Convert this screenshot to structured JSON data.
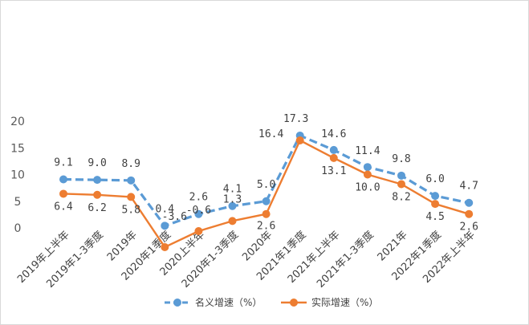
{
  "chart_data": {
    "type": "line",
    "title": "",
    "xlabel": "",
    "ylabel": "",
    "ylim": [
      0,
      20
    ],
    "yticks": [
      0,
      5,
      10,
      15,
      20
    ],
    "grid": false,
    "legend_position": "bottom",
    "categories": [
      "2019年上半年",
      "2019年1-3季度",
      "2019年",
      "2020年1季度",
      "2020上半年",
      "2020年1-3季度",
      "2020年",
      "2021年1季度",
      "2021年上半年",
      "2021年1-3季度",
      "2021年",
      "2022年1季度",
      "2022年上半年"
    ],
    "series": [
      {
        "name": "名义增速（%）",
        "style": "dashed",
        "color": "#5b9bd5",
        "values": [
          9.1,
          9.0,
          8.9,
          0.4,
          2.6,
          4.1,
          5.0,
          17.3,
          14.6,
          11.4,
          9.8,
          6.0,
          4.7
        ],
        "labels": [
          "9.1",
          "9.0",
          "8.9",
          "0.4",
          "2.6",
          "4.1",
          "5.0",
          "17.3",
          "14.6",
          "11.4",
          "9.8",
          "6.0",
          "4.7"
        ]
      },
      {
        "name": "实际增速（%）",
        "style": "solid",
        "color": "#ed7d31",
        "values": [
          6.4,
          6.2,
          5.8,
          -3.6,
          -0.6,
          1.3,
          2.6,
          16.4,
          13.1,
          10.0,
          8.2,
          4.5,
          2.6
        ],
        "labels": [
          "6.4",
          "6.2",
          "5.8",
          "-3.6",
          "-0.6",
          "1.3",
          "2.6",
          "16.4",
          "13.1",
          "10.0",
          "8.2",
          "4.5",
          "2.6"
        ]
      }
    ]
  }
}
